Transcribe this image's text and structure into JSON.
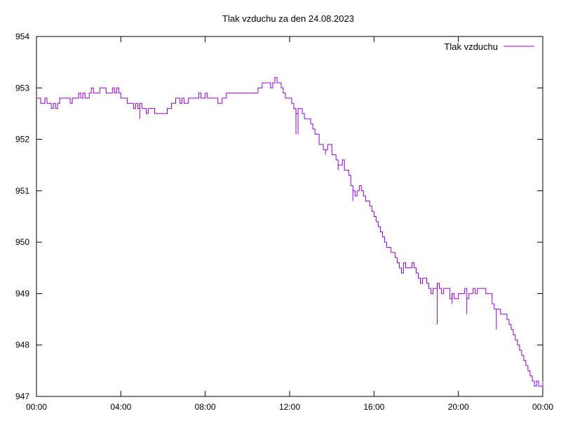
{
  "chart_data": {
    "type": "line",
    "title": "Tlak vzduchu za den 24.08.2023",
    "xlabel": "",
    "ylabel": "",
    "x_ticks": [
      "00:00",
      "04:00",
      "08:00",
      "12:00",
      "16:00",
      "20:00",
      "00:00"
    ],
    "y_ticks": [
      "947",
      "948",
      "949",
      "950",
      "951",
      "952",
      "953",
      "954"
    ],
    "xlim_hours": [
      0,
      24
    ],
    "ylim": [
      947,
      954
    ],
    "grid": false,
    "legend_position": "top-right",
    "series": [
      {
        "name": "Tlak vzduchu",
        "color": "#9400d3",
        "points": [
          [
            0.0,
            952.8
          ],
          [
            0.1,
            952.8
          ],
          [
            0.2,
            952.7
          ],
          [
            0.3,
            952.7
          ],
          [
            0.4,
            952.8
          ],
          [
            0.5,
            952.7
          ],
          [
            0.6,
            952.7
          ],
          [
            0.7,
            952.6
          ],
          [
            0.8,
            952.7
          ],
          [
            0.9,
            952.6
          ],
          [
            1.0,
            952.7
          ],
          [
            1.1,
            952.8
          ],
          [
            1.3,
            952.8
          ],
          [
            1.5,
            952.8
          ],
          [
            1.6,
            952.7
          ],
          [
            1.7,
            952.8
          ],
          [
            1.8,
            952.8
          ],
          [
            2.0,
            952.9
          ],
          [
            2.1,
            952.8
          ],
          [
            2.2,
            952.9
          ],
          [
            2.3,
            952.8
          ],
          [
            2.5,
            952.9
          ],
          [
            2.6,
            953.0
          ],
          [
            2.7,
            952.9
          ],
          [
            2.9,
            952.9
          ],
          [
            3.0,
            953.0
          ],
          [
            3.2,
            953.0
          ],
          [
            3.3,
            952.9
          ],
          [
            3.5,
            952.9
          ],
          [
            3.6,
            953.0
          ],
          [
            3.7,
            952.9
          ],
          [
            3.8,
            953.0
          ],
          [
            3.9,
            952.9
          ],
          [
            4.0,
            952.8
          ],
          [
            4.2,
            952.8
          ],
          [
            4.3,
            952.7
          ],
          [
            4.5,
            952.7
          ],
          [
            4.6,
            952.6
          ],
          [
            4.7,
            952.7
          ],
          [
            4.8,
            952.6
          ],
          [
            4.9,
            952.7
          ],
          [
            5.0,
            952.6
          ],
          [
            5.1,
            952.6
          ],
          [
            5.2,
            952.5
          ],
          [
            5.3,
            952.6
          ],
          [
            5.4,
            952.6
          ],
          [
            5.6,
            952.5
          ],
          [
            5.8,
            952.5
          ],
          [
            6.0,
            952.5
          ],
          [
            6.2,
            952.6
          ],
          [
            6.3,
            952.6
          ],
          [
            6.4,
            952.7
          ],
          [
            6.5,
            952.7
          ],
          [
            6.6,
            952.8
          ],
          [
            6.8,
            952.7
          ],
          [
            6.9,
            952.8
          ],
          [
            7.0,
            952.7
          ],
          [
            7.2,
            952.8
          ],
          [
            7.4,
            952.8
          ],
          [
            7.6,
            952.8
          ],
          [
            7.7,
            952.9
          ],
          [
            7.8,
            952.8
          ],
          [
            8.0,
            952.9
          ],
          [
            8.1,
            952.8
          ],
          [
            8.2,
            952.8
          ],
          [
            8.4,
            952.8
          ],
          [
            8.6,
            952.7
          ],
          [
            8.8,
            952.8
          ],
          [
            9.0,
            952.9
          ],
          [
            9.3,
            952.9
          ],
          [
            9.6,
            952.9
          ],
          [
            9.9,
            952.9
          ],
          [
            10.2,
            952.9
          ],
          [
            10.4,
            952.9
          ],
          [
            10.5,
            953.0
          ],
          [
            10.7,
            953.1
          ],
          [
            10.9,
            953.1
          ],
          [
            11.0,
            953.1
          ],
          [
            11.1,
            953.0
          ],
          [
            11.2,
            953.1
          ],
          [
            11.3,
            953.2
          ],
          [
            11.4,
            953.1
          ],
          [
            11.5,
            953.1
          ],
          [
            11.6,
            953.0
          ],
          [
            11.7,
            952.9
          ],
          [
            11.8,
            952.8
          ],
          [
            12.0,
            952.8
          ],
          [
            12.1,
            952.7
          ],
          [
            12.2,
            952.6
          ],
          [
            12.3,
            952.5
          ],
          [
            12.4,
            952.6
          ],
          [
            12.5,
            952.6
          ],
          [
            12.6,
            952.5
          ],
          [
            12.7,
            952.4
          ],
          [
            12.8,
            952.4
          ],
          [
            13.0,
            952.3
          ],
          [
            13.1,
            952.2
          ],
          [
            13.2,
            952.1
          ],
          [
            13.4,
            951.9
          ],
          [
            13.5,
            951.9
          ],
          [
            13.6,
            951.8
          ],
          [
            13.8,
            951.9
          ],
          [
            14.0,
            951.7
          ],
          [
            14.2,
            951.6
          ],
          [
            14.3,
            951.5
          ],
          [
            14.5,
            951.6
          ],
          [
            14.6,
            951.4
          ],
          [
            14.8,
            951.3
          ],
          [
            14.9,
            951.1
          ],
          [
            15.0,
            951.0
          ],
          [
            15.1,
            950.9
          ],
          [
            15.2,
            951.0
          ],
          [
            15.3,
            951.1
          ],
          [
            15.4,
            951.0
          ],
          [
            15.5,
            950.9
          ],
          [
            15.6,
            950.8
          ],
          [
            15.8,
            950.7
          ],
          [
            15.9,
            950.6
          ],
          [
            16.0,
            950.5
          ],
          [
            16.1,
            950.4
          ],
          [
            16.2,
            950.3
          ],
          [
            16.3,
            950.2
          ],
          [
            16.4,
            950.1
          ],
          [
            16.5,
            950.0
          ],
          [
            16.6,
            949.9
          ],
          [
            16.8,
            949.8
          ],
          [
            17.0,
            949.7
          ],
          [
            17.1,
            949.6
          ],
          [
            17.2,
            949.5
          ],
          [
            17.3,
            949.4
          ],
          [
            17.4,
            949.6
          ],
          [
            17.5,
            949.5
          ],
          [
            17.7,
            949.5
          ],
          [
            17.8,
            949.6
          ],
          [
            17.9,
            949.5
          ],
          [
            18.0,
            949.4
          ],
          [
            18.1,
            949.3
          ],
          [
            18.2,
            949.2
          ],
          [
            18.3,
            949.3
          ],
          [
            18.5,
            949.2
          ],
          [
            18.6,
            949.1
          ],
          [
            18.7,
            949.0
          ],
          [
            18.8,
            949.1
          ],
          [
            18.9,
            949.1
          ],
          [
            19.0,
            949.2
          ],
          [
            19.1,
            949.1
          ],
          [
            19.2,
            949.0
          ],
          [
            19.3,
            949.1
          ],
          [
            19.5,
            949.1
          ],
          [
            19.6,
            948.9
          ],
          [
            19.7,
            949.0
          ],
          [
            19.8,
            948.9
          ],
          [
            20.0,
            949.0
          ],
          [
            20.2,
            949.0
          ],
          [
            20.3,
            949.1
          ],
          [
            20.4,
            948.9
          ],
          [
            20.5,
            949.0
          ],
          [
            20.7,
            949.1
          ],
          [
            20.8,
            949.0
          ],
          [
            20.9,
            949.1
          ],
          [
            21.1,
            949.1
          ],
          [
            21.3,
            949.0
          ],
          [
            21.5,
            949.0
          ],
          [
            21.6,
            948.8
          ],
          [
            21.7,
            948.7
          ],
          [
            21.9,
            948.7
          ],
          [
            22.0,
            948.6
          ],
          [
            22.2,
            948.6
          ],
          [
            22.3,
            948.5
          ],
          [
            22.4,
            948.4
          ],
          [
            22.5,
            948.3
          ],
          [
            22.6,
            948.2
          ],
          [
            22.7,
            948.1
          ],
          [
            22.8,
            948.0
          ],
          [
            22.9,
            947.9
          ],
          [
            23.0,
            947.8
          ],
          [
            23.1,
            947.7
          ],
          [
            23.2,
            947.6
          ],
          [
            23.3,
            947.5
          ],
          [
            23.4,
            947.4
          ],
          [
            23.5,
            947.3
          ],
          [
            23.6,
            947.2
          ],
          [
            23.7,
            947.3
          ],
          [
            23.8,
            947.2
          ],
          [
            23.9,
            947.2
          ],
          [
            24.0,
            947.3
          ]
        ],
        "spikes": [
          [
            4.9,
            952.4
          ],
          [
            12.3,
            952.1
          ],
          [
            12.4,
            952.1
          ],
          [
            13.7,
            951.7
          ],
          [
            14.3,
            951.4
          ],
          [
            15.0,
            950.8
          ],
          [
            17.3,
            949.4
          ],
          [
            19.0,
            948.4
          ],
          [
            19.7,
            948.8
          ],
          [
            20.4,
            948.6
          ],
          [
            21.8,
            948.3
          ]
        ]
      }
    ]
  }
}
